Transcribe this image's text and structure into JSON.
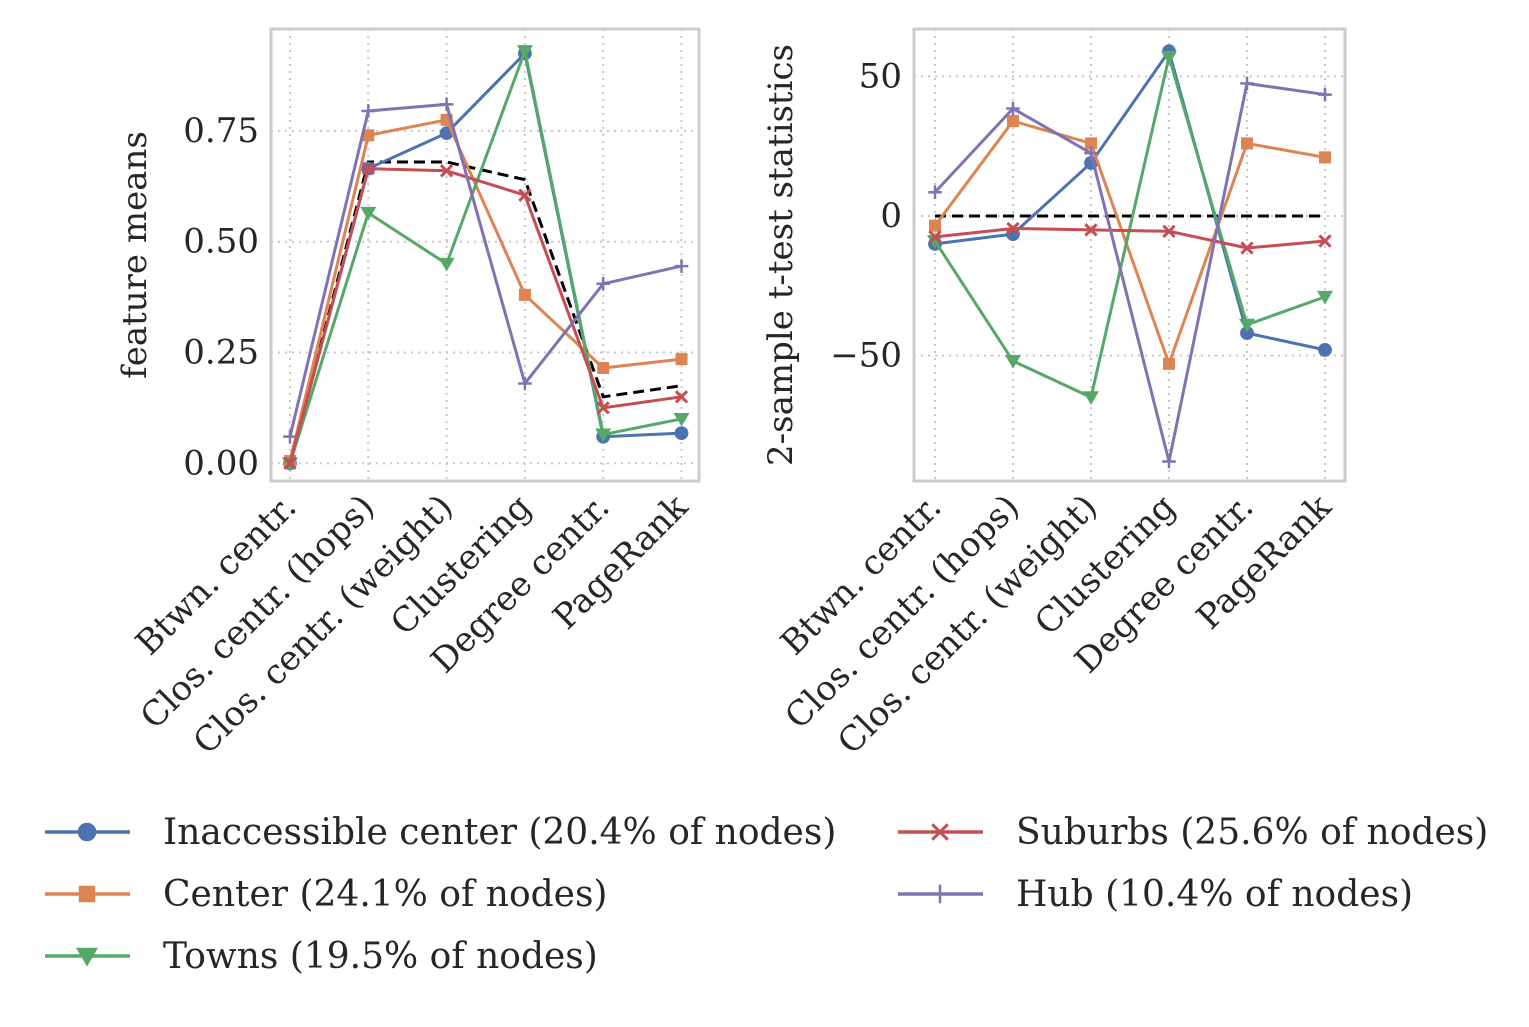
{
  "colors": {
    "grid": "#c8c8c8",
    "frame": "#cccccc",
    "reference_line": "#000000"
  },
  "chart_data": [
    {
      "type": "line",
      "categories": [
        "Btwn. centr.",
        "Clos. centr. (hops)",
        "Clos. centr. (weight)",
        "Clustering",
        "Degree centr.",
        "PageRank"
      ],
      "ylabel": "feature means",
      "xlabel": "",
      "ylim": [
        -0.04,
        0.98
      ],
      "yticks": [
        0.0,
        0.25,
        0.5,
        0.75
      ],
      "ytick_labels": [
        "0.00",
        "0.25",
        "0.50",
        "0.75"
      ],
      "grid": true,
      "reference_line": {
        "style": "dashed",
        "color": "#000000",
        "values": [
          0.0,
          0.68,
          0.68,
          0.64,
          0.15,
          0.175
        ]
      },
      "series": [
        {
          "name": "Inaccessible center (20.4% of nodes)",
          "color": "#4c72b0",
          "marker": "circle",
          "values": [
            0.0,
            0.665,
            0.745,
            0.925,
            0.06,
            0.068
          ]
        },
        {
          "name": "Center (24.1% of nodes)",
          "color": "#dd8452",
          "marker": "square",
          "values": [
            0.005,
            0.74,
            0.775,
            0.38,
            0.215,
            0.235
          ]
        },
        {
          "name": "Towns (19.5% of nodes)",
          "color": "#55a868",
          "marker": "triangle-down",
          "values": [
            0.0,
            0.565,
            0.45,
            0.93,
            0.065,
            0.1
          ]
        },
        {
          "name": "Suburbs (25.6% of nodes)",
          "color": "#c44e52",
          "marker": "x",
          "values": [
            0.0,
            0.665,
            0.66,
            0.605,
            0.125,
            0.15
          ]
        },
        {
          "name": "Hub (10.4% of nodes)",
          "color": "#8172b3",
          "marker": "plus",
          "values": [
            0.06,
            0.795,
            0.81,
            0.18,
            0.405,
            0.445
          ]
        }
      ]
    },
    {
      "type": "line",
      "categories": [
        "Btwn. centr.",
        "Clos. centr. (hops)",
        "Clos. centr. (weight)",
        "Clustering",
        "Degree centr.",
        "PageRank"
      ],
      "ylabel": "2-sample t-test statistics",
      "xlabel": "",
      "ylim": [
        -95,
        67
      ],
      "yticks": [
        -50,
        0,
        50
      ],
      "ytick_labels": [
        "−50",
        "0",
        "50"
      ],
      "grid": true,
      "reference_line": {
        "style": "dashed",
        "color": "#000000",
        "values": [
          0,
          0,
          0,
          0,
          0,
          0
        ]
      },
      "series": [
        {
          "name": "Inaccessible center (20.4% of nodes)",
          "color": "#4c72b0",
          "marker": "circle",
          "values": [
            -10,
            -6.5,
            19,
            59,
            -42,
            -48
          ]
        },
        {
          "name": "Center (24.1% of nodes)",
          "color": "#dd8452",
          "marker": "square",
          "values": [
            -3.5,
            34,
            26,
            -53,
            26,
            21
          ]
        },
        {
          "name": "Towns (19.5% of nodes)",
          "color": "#55a868",
          "marker": "triangle-down",
          "values": [
            -9,
            -52,
            -65,
            57,
            -39,
            -29
          ]
        },
        {
          "name": "Suburbs (25.6% of nodes)",
          "color": "#c44e52",
          "marker": "x",
          "values": [
            -7.5,
            -4.5,
            -5,
            -5.5,
            -11.5,
            -9
          ]
        },
        {
          "name": "Hub (10.4% of nodes)",
          "color": "#8172b3",
          "marker": "plus",
          "values": [
            8.5,
            38.5,
            22.5,
            -88,
            47.5,
            43.5
          ]
        }
      ]
    }
  ],
  "legend": {
    "placement": "bottom",
    "entries": [
      {
        "label": "Inaccessible center (20.4% of nodes)",
        "color": "#4c72b0",
        "marker": "circle"
      },
      {
        "label": "Center (24.1% of nodes)",
        "color": "#dd8452",
        "marker": "square"
      },
      {
        "label": "Towns (19.5% of nodes)",
        "color": "#55a868",
        "marker": "triangle-down"
      },
      {
        "label": "Suburbs (25.6% of nodes)",
        "color": "#c44e52",
        "marker": "x"
      },
      {
        "label": "Hub (10.4% of nodes)",
        "color": "#8172b3",
        "marker": "plus"
      }
    ]
  }
}
